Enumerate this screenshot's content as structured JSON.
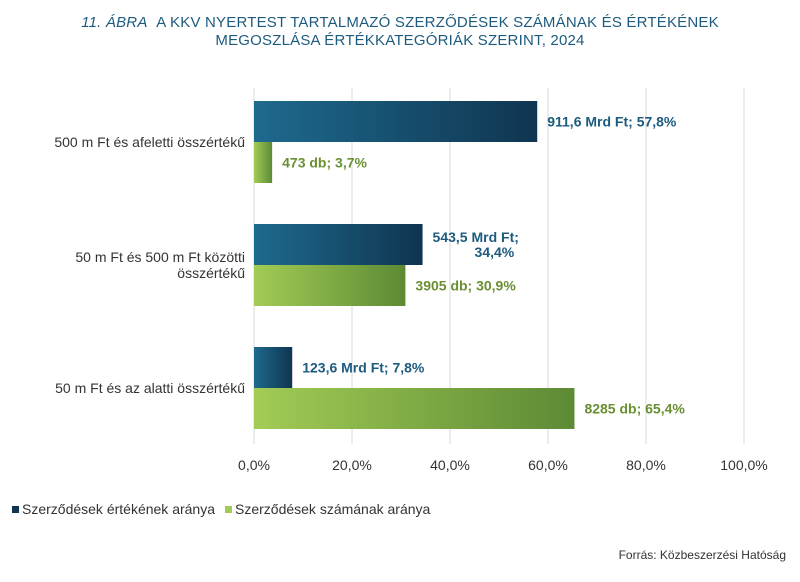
{
  "title": {
    "prefix": "11. ÁBRA",
    "line1": "A KKV NYERTEST TARTALMAZÓ SZERZŐDÉSEK SZÁMÁNAK ÉS ÉRTÉKÉNEK",
    "line2": "MEGOSZLÁSA ÉRTÉKKATEGÓRIÁK SZERINT, 2024"
  },
  "source": "Forrás: Közbeszerzési Hatóság",
  "colors": {
    "value_dark": "#0f3550",
    "value_light": "#1e6a8e",
    "count_dark": "#5d8a35",
    "count_light": "#a2cc55",
    "value_label": "#1d5b7e",
    "count_label": "#6a8f32"
  },
  "chart_data": {
    "type": "bar",
    "orientation": "horizontal",
    "categories": [
      [
        "500 m Ft és afeletti összértékű"
      ],
      [
        "50 m Ft és 500 m Ft közötti",
        "összértékű"
      ],
      [
        "50 m Ft és az alatti összértékű"
      ]
    ],
    "series": [
      {
        "name": "Szerződések értékének aránya",
        "values": [
          57.8,
          34.4,
          7.8
        ],
        "labels": [
          [
            "911,6 Mrd Ft; 57,8%"
          ],
          [
            "543,5 Mrd Ft;",
            "34,4%"
          ],
          [
            "123,6 Mrd Ft; 7,8%"
          ]
        ]
      },
      {
        "name": "Szerződések számának aránya",
        "values": [
          3.7,
          30.9,
          65.4
        ],
        "labels": [
          [
            "473 db; 3,7%"
          ],
          [
            "3905 db; 30,9%"
          ],
          [
            "8285 db; 65,4%"
          ]
        ]
      }
    ],
    "xlim": [
      0,
      100
    ],
    "xticks": [
      "0,0%",
      "20,0%",
      "40,0%",
      "60,0%",
      "80,0%",
      "100,0%"
    ],
    "grid": true,
    "legend": "bottom-left"
  }
}
